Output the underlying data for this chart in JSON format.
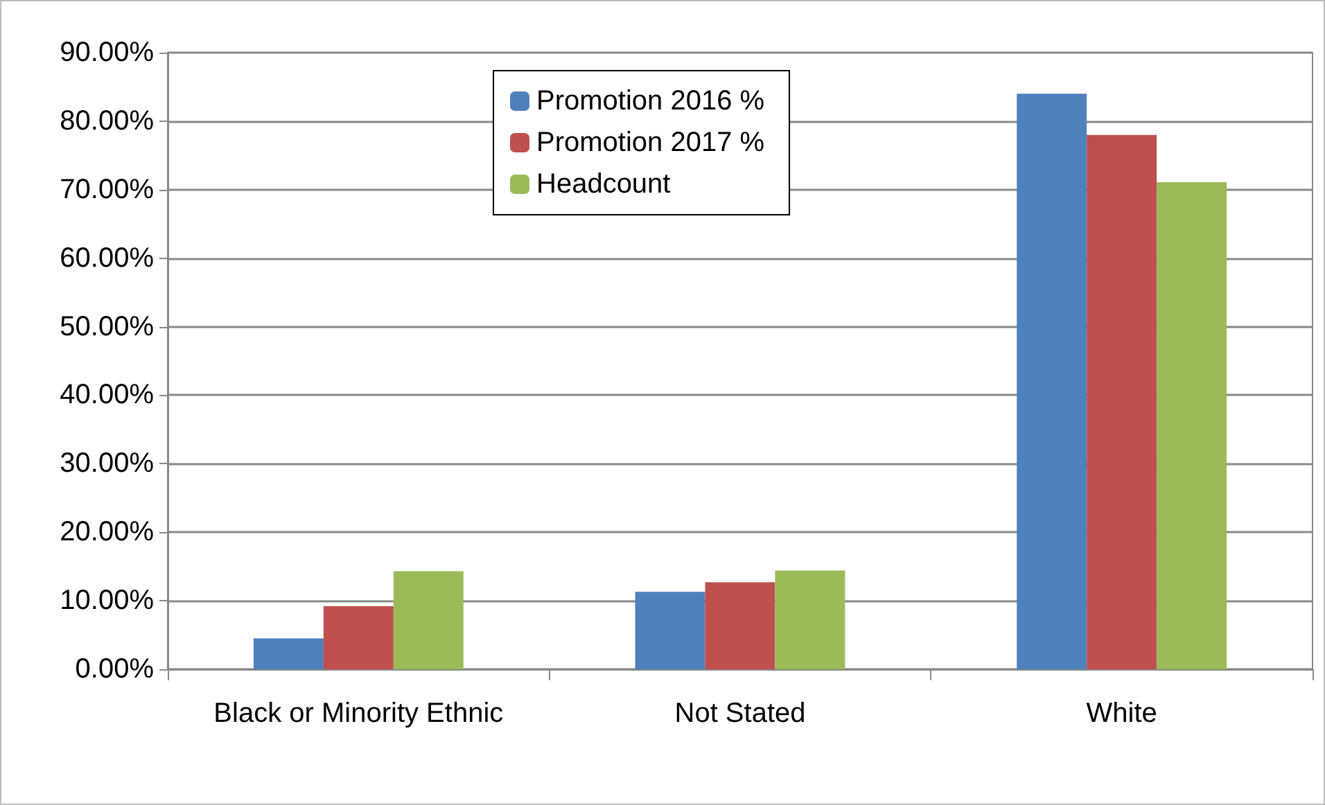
{
  "chart_data": {
    "type": "bar",
    "categories": [
      "Black or Minority Ethnic",
      "Not Stated",
      "White"
    ],
    "series": [
      {
        "name": "Promotion 2016 %",
        "color": "#4f81bd",
        "values": [
          4.5,
          11.3,
          84.0
        ]
      },
      {
        "name": "Promotion 2017 %",
        "color": "#c0504d",
        "values": [
          9.2,
          12.7,
          78.0
        ]
      },
      {
        "name": "Headcount",
        "color": "#9bbb59",
        "values": [
          14.3,
          14.4,
          71.1
        ]
      }
    ],
    "ylim": [
      0,
      90
    ],
    "yticks": [
      {
        "value": 0,
        "label": "0.00%"
      },
      {
        "value": 10,
        "label": "10.00%"
      },
      {
        "value": 20,
        "label": "20.00%"
      },
      {
        "value": 30,
        "label": "30.00%"
      },
      {
        "value": 40,
        "label": "40.00%"
      },
      {
        "value": 50,
        "label": "50.00%"
      },
      {
        "value": 60,
        "label": "60.00%"
      },
      {
        "value": 70,
        "label": "70.00%"
      },
      {
        "value": 80,
        "label": "80.00%"
      },
      {
        "value": 90,
        "label": "90.00%"
      }
    ],
    "grid": "y",
    "legend": "top"
  }
}
